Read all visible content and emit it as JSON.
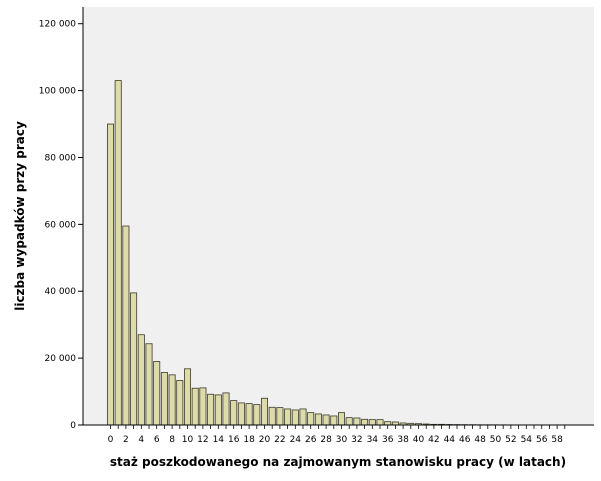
{
  "chart_data": {
    "type": "bar",
    "xlabel": "staż poszkodowanego na zajmowanym stanowisku pracy (w latach)",
    "ylabel": "liczba wypadków przy pracy",
    "ylim": [
      0,
      125000
    ],
    "yticks": [
      0,
      20000,
      40000,
      60000,
      80000,
      100000,
      120000
    ],
    "ytick_labels": [
      "0",
      "20 000",
      "40 000",
      "60 000",
      "80 000",
      "100 000",
      "120 000"
    ],
    "xtick_labels": [
      "0",
      "2",
      "4",
      "6",
      "8",
      "10",
      "12",
      "14",
      "16",
      "18",
      "20",
      "22",
      "24",
      "26",
      "28",
      "30",
      "32",
      "34",
      "36",
      "38",
      "40",
      "42",
      "44",
      "46",
      "48",
      "50",
      "52",
      "54",
      "56",
      "58"
    ],
    "categories": [
      0,
      1,
      2,
      3,
      4,
      5,
      6,
      7,
      8,
      9,
      10,
      11,
      12,
      13,
      14,
      15,
      16,
      17,
      18,
      19,
      20,
      21,
      22,
      23,
      24,
      25,
      26,
      27,
      28,
      29,
      30,
      31,
      32,
      33,
      34,
      35,
      36,
      37,
      38,
      39,
      40,
      41,
      42,
      43,
      44,
      45,
      46,
      47,
      48,
      49,
      50,
      51,
      52,
      53,
      54,
      55,
      56,
      57,
      58,
      59
    ],
    "values": [
      90000,
      103000,
      59500,
      39500,
      27000,
      24300,
      19000,
      15700,
      15000,
      13300,
      16800,
      11000,
      11100,
      9200,
      9000,
      9600,
      7300,
      6600,
      6400,
      6100,
      8000,
      5300,
      5200,
      4800,
      4500,
      4800,
      3700,
      3300,
      3000,
      2700,
      3700,
      2200,
      2100,
      1700,
      1600,
      1600,
      1000,
      900,
      600,
      500,
      400,
      300,
      200,
      200,
      150,
      120,
      100,
      80,
      70,
      60,
      50,
      40,
      30,
      30,
      20,
      20,
      15,
      10,
      10,
      5
    ],
    "colors": {
      "bar_fill": "#dedbaa",
      "bar_stroke": "#3a3a2a",
      "plot_bg": "#f0f0f0",
      "frame": "#000000"
    },
    "grid": false
  }
}
